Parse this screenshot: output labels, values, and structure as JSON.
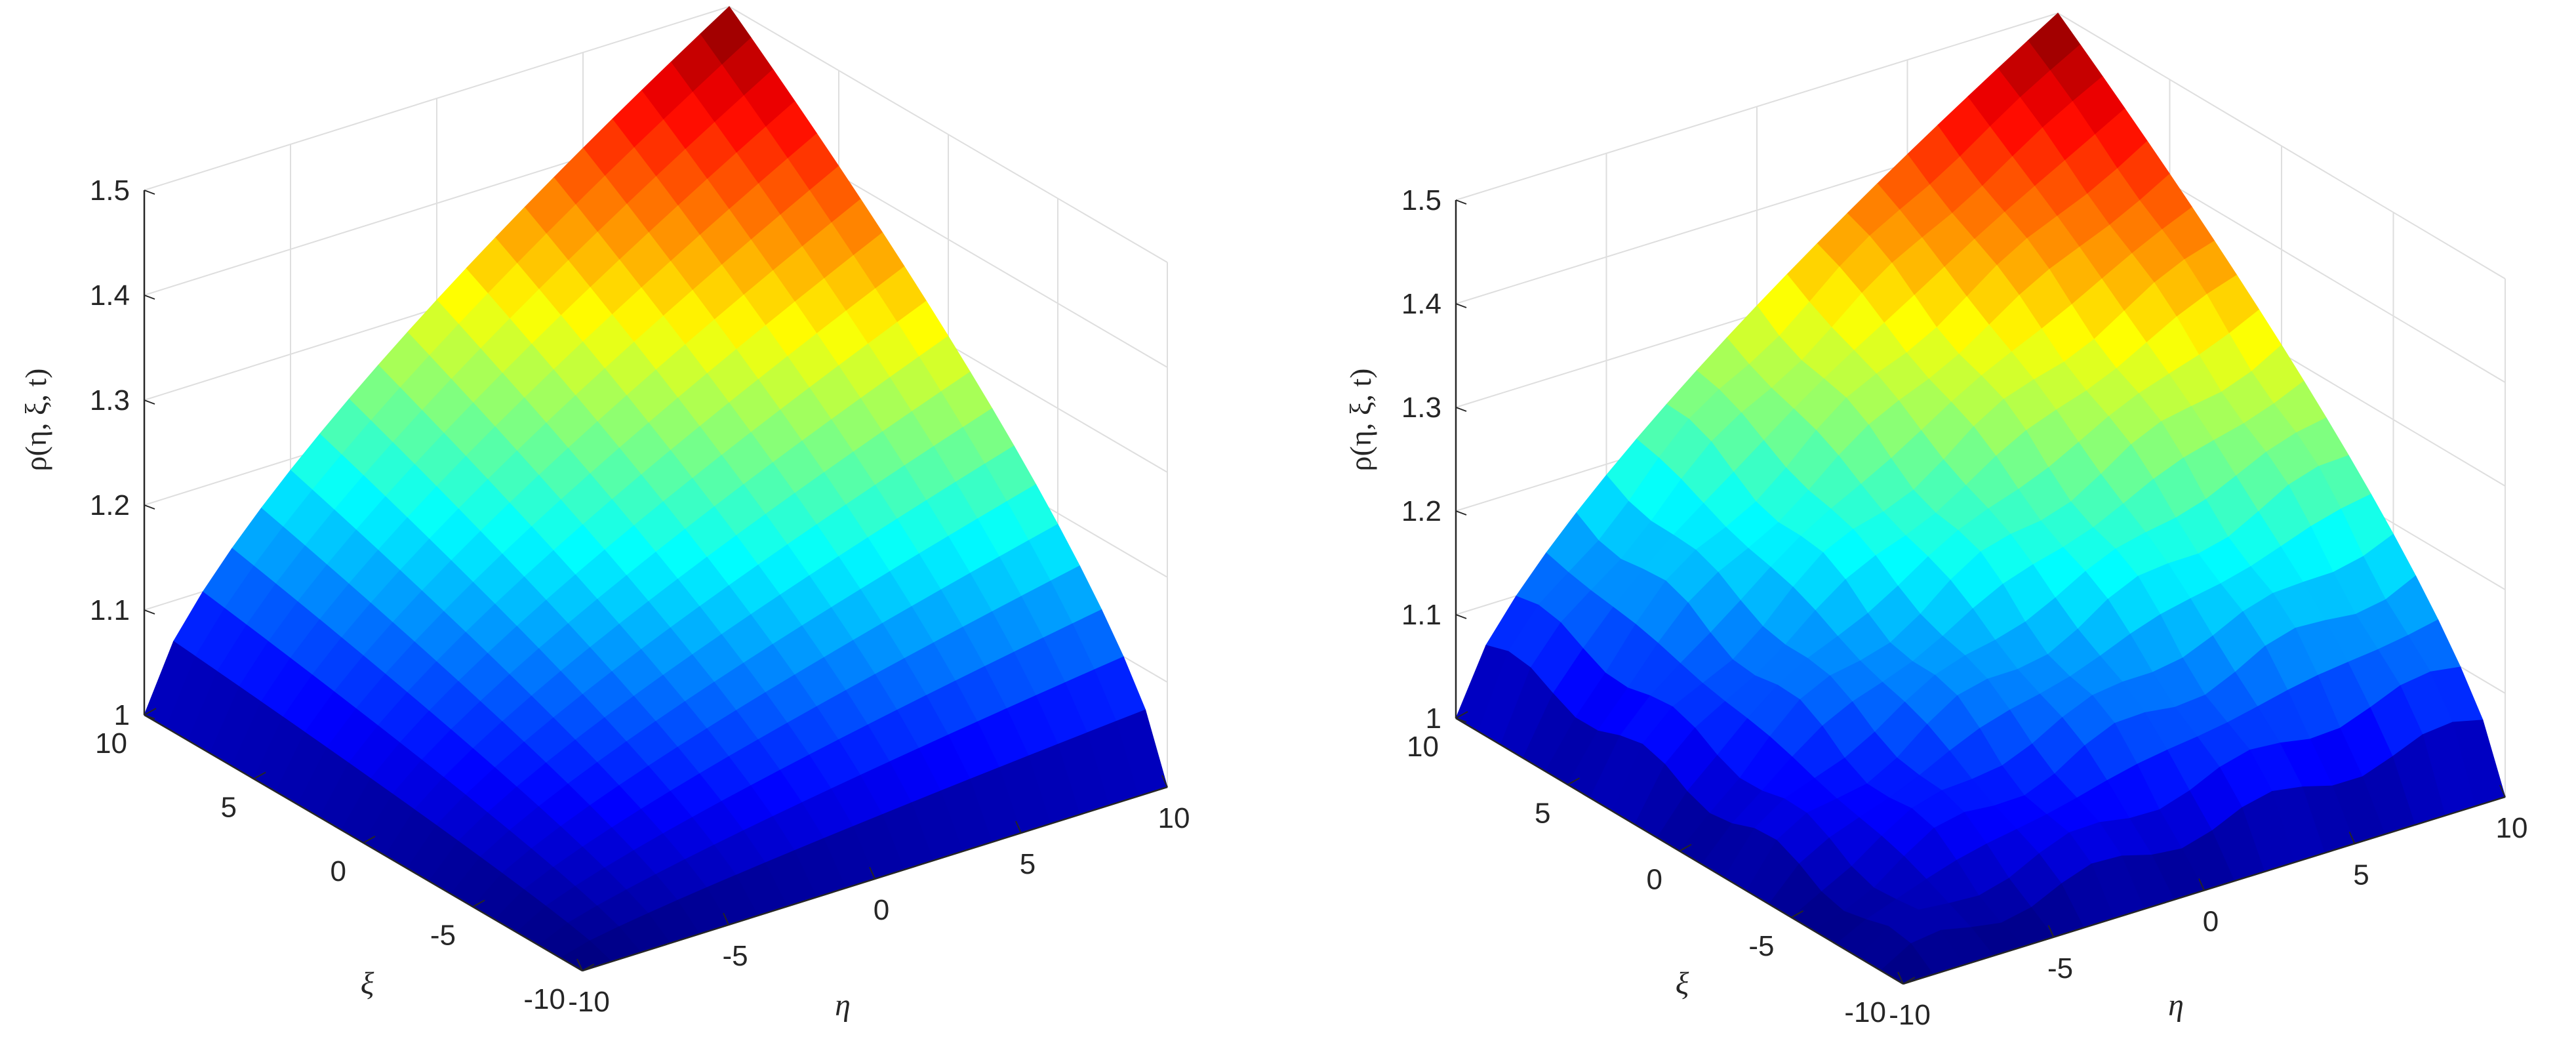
{
  "colors": {
    "axis": "#262626",
    "grid": "#dedede",
    "colormap": "jet",
    "facet_edge": "none"
  },
  "chart_data": [
    {
      "type": "surface",
      "colormap": "jet",
      "xlabel": "η",
      "ylabel": "ξ",
      "zlabel": "ρ(η, ξ, t)",
      "xlim": [
        -10,
        10
      ],
      "ylim": [
        -10,
        10
      ],
      "zlim": [
        1,
        1.5
      ],
      "grid": true,
      "x_ticks": [
        -10,
        -5,
        0,
        5,
        10
      ],
      "y_ticks": [
        -10,
        -5,
        0,
        5,
        10
      ],
      "z_ticks": [
        1,
        1.1,
        1.2,
        1.3,
        1.4,
        1.5
      ],
      "x_tick_labels": [
        "-10",
        "-5",
        "0",
        "5",
        "10"
      ],
      "y_tick_labels": [
        "-10",
        "-5",
        "0",
        "5",
        "10"
      ],
      "z_tick_labels": [
        "1",
        "1.1",
        "1.2",
        "1.3",
        "1.4",
        "1.5"
      ],
      "grid_points": 21,
      "surface": {
        "shape": "smooth peak at one corner, minimum along edges",
        "z_min": 1.0,
        "z_max": 1.5,
        "z_at_center": 1.2,
        "z_samples": [
          {
            "x": 10,
            "y": 10,
            "z": 1.5
          },
          {
            "x": 0,
            "y": 0,
            "z": 1.2
          },
          {
            "x": -10,
            "y": -10,
            "z": 1.0
          },
          {
            "x": 10,
            "y": -10,
            "z": 1.0
          },
          {
            "x": -10,
            "y": 10,
            "z": 1.0
          }
        ]
      }
    },
    {
      "type": "surface",
      "colormap": "jet",
      "xlabel": "η",
      "ylabel": "ξ",
      "zlabel": "ρ(η, ξ, t)",
      "xlim": [
        -10,
        10
      ],
      "ylim": [
        -10,
        10
      ],
      "zlim": [
        1,
        1.5
      ],
      "grid": true,
      "x_ticks": [
        -10,
        -5,
        0,
        5,
        10
      ],
      "y_ticks": [
        -10,
        -5,
        0,
        5,
        10
      ],
      "z_ticks": [
        1,
        1.1,
        1.2,
        1.3,
        1.4,
        1.5
      ],
      "x_tick_labels": [
        "-10",
        "-5",
        "0",
        "5",
        "10"
      ],
      "y_tick_labels": [
        "-10",
        "-5",
        "0",
        "5",
        "10"
      ],
      "z_tick_labels": [
        "1",
        "1.1",
        "1.2",
        "1.3",
        "1.4",
        "1.5"
      ],
      "grid_points": 21,
      "surface": {
        "shape": "smooth peak at one corner with slight edge ripples",
        "z_min": 1.0,
        "z_max": 1.5,
        "z_at_center": 1.2,
        "z_samples": [
          {
            "x": 10,
            "y": 10,
            "z": 1.5
          },
          {
            "x": 0,
            "y": 0,
            "z": 1.2
          },
          {
            "x": -10,
            "y": -10,
            "z": 1.0
          },
          {
            "x": 10,
            "y": -10,
            "z": 1.0
          },
          {
            "x": -10,
            "y": 10,
            "z": 1.0
          }
        ]
      }
    }
  ]
}
